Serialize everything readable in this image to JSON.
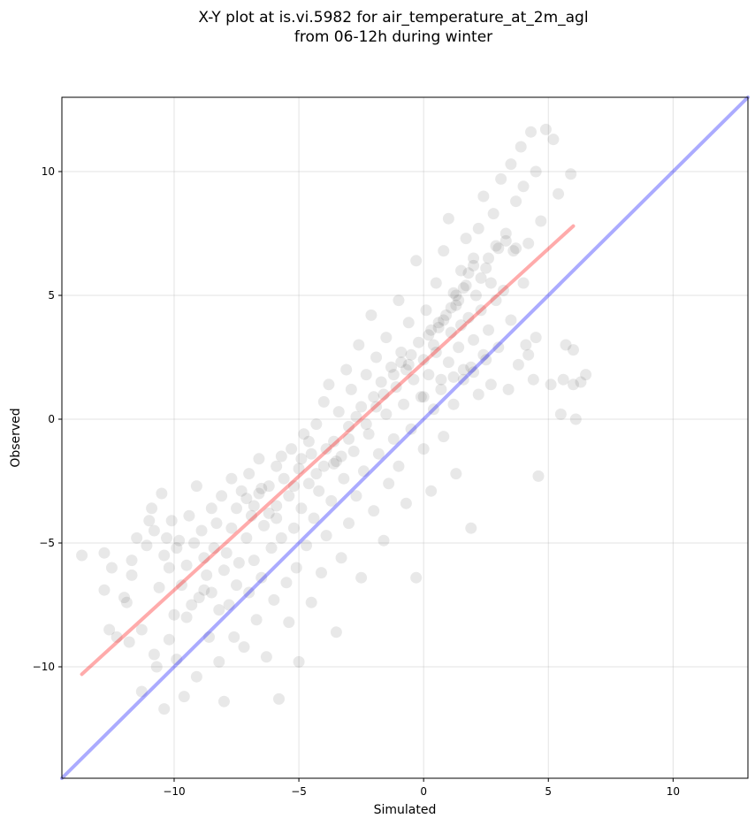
{
  "chart_data": {
    "type": "scatter",
    "title": "X-Y plot at is.vi.5982 for air_temperature_at_2m_agl",
    "subtitle": "from 06-12h during winter",
    "xlabel": "Simulated",
    "ylabel": "Observed",
    "xlim": [
      -14.5,
      13
    ],
    "ylim": [
      -14.5,
      13
    ],
    "x_ticks": [
      -10,
      -5,
      0,
      5,
      10
    ],
    "y_ticks": [
      -10,
      -5,
      0,
      5,
      10
    ],
    "x_tick_labels": [
      "−10",
      "−5",
      "0",
      "5",
      "10"
    ],
    "y_tick_labels": [
      "−10",
      "−5",
      "0",
      "5",
      "10"
    ],
    "grid": true,
    "series": [
      {
        "type": "scatter",
        "color": "#000000",
        "points": [
          [
            -13.7,
            -5.5
          ],
          [
            -12.8,
            -5.4
          ],
          [
            -12.8,
            -6.9
          ],
          [
            -12.6,
            -8.5
          ],
          [
            -12.3,
            -8.8
          ],
          [
            -12.0,
            -7.2
          ],
          [
            -11.9,
            -7.4
          ],
          [
            -11.7,
            -6.3
          ],
          [
            -11.7,
            -5.7
          ],
          [
            -11.5,
            -4.8
          ],
          [
            -11.3,
            -8.5
          ],
          [
            -11.3,
            -11.0
          ],
          [
            -11.1,
            -5.1
          ],
          [
            -11.0,
            -4.1
          ],
          [
            -10.9,
            -3.6
          ],
          [
            -10.8,
            -4.5
          ],
          [
            -10.8,
            -9.5
          ],
          [
            -10.7,
            -10.0
          ],
          [
            -10.6,
            -6.8
          ],
          [
            -10.5,
            -3.0
          ],
          [
            -10.4,
            -5.5
          ],
          [
            -10.4,
            -11.7
          ],
          [
            -10.3,
            -4.8
          ],
          [
            -10.2,
            -8.9
          ],
          [
            -10.1,
            -4.1
          ],
          [
            -10.0,
            -7.9
          ],
          [
            -9.9,
            -5.2
          ],
          [
            -9.9,
            -9.7
          ],
          [
            -9.8,
            -4.9
          ],
          [
            -9.7,
            -6.7
          ],
          [
            -9.6,
            -11.2
          ],
          [
            -9.5,
            -5.9
          ],
          [
            -9.4,
            -3.9
          ],
          [
            -9.3,
            -7.5
          ],
          [
            -9.2,
            -5.0
          ],
          [
            -9.1,
            -10.4
          ],
          [
            -9.1,
            -2.7
          ],
          [
            -9.0,
            -7.2
          ],
          [
            -8.9,
            -4.5
          ],
          [
            -8.8,
            -5.6
          ],
          [
            -8.7,
            -6.3
          ],
          [
            -8.6,
            -8.8
          ],
          [
            -8.5,
            -3.6
          ],
          [
            -8.5,
            -7.0
          ],
          [
            -8.4,
            -5.2
          ],
          [
            -8.3,
            -4.2
          ],
          [
            -8.2,
            -9.8
          ],
          [
            -8.1,
            -3.1
          ],
          [
            -8.0,
            -6.1
          ],
          [
            -8.0,
            -11.4
          ],
          [
            -7.9,
            -5.4
          ],
          [
            -7.8,
            -7.5
          ],
          [
            -7.7,
            -4.4
          ],
          [
            -7.6,
            -8.8
          ],
          [
            -7.5,
            -3.6
          ],
          [
            -7.5,
            -6.7
          ],
          [
            -7.4,
            -5.8
          ],
          [
            -7.3,
            -2.9
          ],
          [
            -7.2,
            -9.2
          ],
          [
            -7.1,
            -4.8
          ],
          [
            -7.0,
            -7.0
          ],
          [
            -7.0,
            -2.2
          ],
          [
            -6.9,
            -3.9
          ],
          [
            -6.8,
            -5.7
          ],
          [
            -6.7,
            -8.1
          ],
          [
            -6.6,
            -1.6
          ],
          [
            -6.6,
            -3.0
          ],
          [
            -6.5,
            -6.4
          ],
          [
            -6.4,
            -4.3
          ],
          [
            -6.3,
            -9.6
          ],
          [
            -6.2,
            -2.7
          ],
          [
            -6.1,
            -5.2
          ],
          [
            -6.0,
            -7.3
          ],
          [
            -5.9,
            -1.9
          ],
          [
            -5.9,
            -3.5
          ],
          [
            -5.8,
            -11.3
          ],
          [
            -5.7,
            -4.8
          ],
          [
            -5.6,
            -2.4
          ],
          [
            -5.5,
            -6.6
          ],
          [
            -5.4,
            -8.2
          ],
          [
            -5.4,
            -3.1
          ],
          [
            -5.3,
            -1.2
          ],
          [
            -5.2,
            -4.4
          ],
          [
            -5.1,
            -6.0
          ],
          [
            -5.0,
            -2.0
          ],
          [
            -5.0,
            -9.8
          ],
          [
            -4.9,
            -3.6
          ],
          [
            -4.8,
            -0.6
          ],
          [
            -4.7,
            -5.1
          ],
          [
            -4.6,
            -2.6
          ],
          [
            -4.5,
            -7.4
          ],
          [
            -4.5,
            -1.4
          ],
          [
            -4.4,
            -4.0
          ],
          [
            -4.3,
            -0.2
          ],
          [
            -4.2,
            -2.9
          ],
          [
            -4.1,
            -6.2
          ],
          [
            -4.0,
            0.7
          ],
          [
            -4.0,
            -1.9
          ],
          [
            -3.9,
            -4.7
          ],
          [
            -3.8,
            1.4
          ],
          [
            -3.7,
            -3.3
          ],
          [
            -3.6,
            -0.9
          ],
          [
            -3.5,
            -8.6
          ],
          [
            -3.5,
            -1.7
          ],
          [
            -3.4,
            0.3
          ],
          [
            -3.3,
            -5.6
          ],
          [
            -3.2,
            -2.4
          ],
          [
            -3.1,
            2.0
          ],
          [
            -3.0,
            -0.3
          ],
          [
            -3.0,
            -4.2
          ],
          [
            -2.9,
            1.2
          ],
          [
            -2.8,
            -1.3
          ],
          [
            -2.7,
            -3.1
          ],
          [
            -2.6,
            3.0
          ],
          [
            -2.5,
            0.5
          ],
          [
            -2.5,
            -6.4
          ],
          [
            -2.4,
            -2.1
          ],
          [
            -2.3,
            1.8
          ],
          [
            -2.2,
            -0.6
          ],
          [
            -2.1,
            4.2
          ],
          [
            -2.0,
            -3.7
          ],
          [
            -2.0,
            0.9
          ],
          [
            -1.9,
            2.5
          ],
          [
            -1.8,
            -1.4
          ],
          [
            -1.7,
            1.5
          ],
          [
            -1.6,
            -4.9
          ],
          [
            -1.5,
            3.3
          ],
          [
            -1.5,
            0.2
          ],
          [
            -1.4,
            -2.6
          ],
          [
            -1.3,
            2.1
          ],
          [
            -1.2,
            -0.8
          ],
          [
            -1.1,
            1.3
          ],
          [
            -1.0,
            4.8
          ],
          [
            -1.0,
            -1.9
          ],
          [
            -0.9,
            2.7
          ],
          [
            -0.8,
            0.6
          ],
          [
            -0.7,
            -3.4
          ],
          [
            -0.6,
            2.2
          ],
          [
            -0.6,
            3.9
          ],
          [
            -0.5,
            -0.4
          ],
          [
            -0.4,
            1.6
          ],
          [
            -0.3,
            6.4
          ],
          [
            -0.3,
            -6.4
          ],
          [
            -0.2,
            3.1
          ],
          [
            -0.1,
            0.9
          ],
          [
            0.0,
            2.4
          ],
          [
            0.0,
            -1.2
          ],
          [
            0.1,
            4.4
          ],
          [
            0.2,
            1.8
          ],
          [
            0.3,
            3.6
          ],
          [
            0.3,
            -2.9
          ],
          [
            0.4,
            0.4
          ],
          [
            0.5,
            5.5
          ],
          [
            0.5,
            2.7
          ],
          [
            0.6,
            3.9
          ],
          [
            0.7,
            1.2
          ],
          [
            0.8,
            6.8
          ],
          [
            0.8,
            -0.7
          ],
          [
            0.9,
            4.2
          ],
          [
            1.0,
            2.3
          ],
          [
            1.0,
            8.1
          ],
          [
            1.1,
            3.5
          ],
          [
            1.2,
            0.6
          ],
          [
            1.2,
            5.1
          ],
          [
            1.3,
            4.6
          ],
          [
            1.3,
            -2.2
          ],
          [
            1.4,
            2.9
          ],
          [
            1.5,
            6.0
          ],
          [
            1.5,
            3.8
          ],
          [
            1.6,
            1.6
          ],
          [
            1.7,
            5.4
          ],
          [
            1.7,
            7.3
          ],
          [
            1.8,
            4.1
          ],
          [
            1.9,
            2.1
          ],
          [
            1.9,
            -4.4
          ],
          [
            2.0,
            6.5
          ],
          [
            2.0,
            3.2
          ],
          [
            2.1,
            5.0
          ],
          [
            2.2,
            1.0
          ],
          [
            2.2,
            7.7
          ],
          [
            2.3,
            4.4
          ],
          [
            2.4,
            2.6
          ],
          [
            2.4,
            9.0
          ],
          [
            2.5,
            6.1
          ],
          [
            2.6,
            3.6
          ],
          [
            2.7,
            5.5
          ],
          [
            2.7,
            1.4
          ],
          [
            2.8,
            8.3
          ],
          [
            2.9,
            4.8
          ],
          [
            3.0,
            6.9
          ],
          [
            3.0,
            2.9
          ],
          [
            3.1,
            9.7
          ],
          [
            3.2,
            5.2
          ],
          [
            3.3,
            7.5
          ],
          [
            3.4,
            1.2
          ],
          [
            3.5,
            10.3
          ],
          [
            3.5,
            4.0
          ],
          [
            3.6,
            6.8
          ],
          [
            3.7,
            8.8
          ],
          [
            3.8,
            2.2
          ],
          [
            3.9,
            11.0
          ],
          [
            4.0,
            5.5
          ],
          [
            4.0,
            9.4
          ],
          [
            4.1,
            3.0
          ],
          [
            4.2,
            7.1
          ],
          [
            4.3,
            11.6
          ],
          [
            4.4,
            1.6
          ],
          [
            4.5,
            10.0
          ],
          [
            4.6,
            -2.3
          ],
          [
            4.7,
            8.0
          ],
          [
            4.9,
            11.7
          ],
          [
            5.1,
            1.4
          ],
          [
            5.2,
            11.3
          ],
          [
            5.4,
            9.1
          ],
          [
            5.6,
            1.6
          ],
          [
            5.7,
            3.0
          ],
          [
            5.9,
            9.9
          ],
          [
            6.0,
            2.8
          ],
          [
            6.1,
            0.0
          ],
          [
            6.3,
            1.5
          ],
          [
            6.5,
            1.8
          ],
          [
            6.0,
            1.4
          ],
          [
            5.5,
            0.2
          ],
          [
            4.5,
            3.3
          ],
          [
            4.2,
            2.6
          ],
          [
            -12.5,
            -6.0
          ],
          [
            -11.8,
            -9.0
          ],
          [
            -10.2,
            -6.0
          ],
          [
            -9.5,
            -8.0
          ],
          [
            -8.8,
            -6.9
          ],
          [
            -8.2,
            -7.7
          ],
          [
            -7.7,
            -2.4
          ],
          [
            -7.1,
            -3.2
          ],
          [
            -6.8,
            -3.5
          ],
          [
            -6.5,
            -2.8
          ],
          [
            -6.2,
            -3.8
          ],
          [
            -5.9,
            -4.0
          ],
          [
            -5.7,
            -1.5
          ],
          [
            -5.2,
            -2.7
          ],
          [
            -4.9,
            -1.6
          ],
          [
            -4.6,
            -0.9
          ],
          [
            -4.3,
            -2.2
          ],
          [
            -3.9,
            -1.2
          ],
          [
            -3.6,
            -1.8
          ],
          [
            -3.3,
            -1.5
          ],
          [
            -3.0,
            -0.8
          ],
          [
            -2.7,
            0.1
          ],
          [
            -2.3,
            -0.2
          ],
          [
            -1.9,
            0.5
          ],
          [
            -1.6,
            1.0
          ],
          [
            -1.2,
            1.8
          ],
          [
            -0.9,
            2.3
          ],
          [
            -0.7,
            2.0
          ],
          [
            -0.5,
            2.6
          ],
          [
            0.2,
            3.4
          ],
          [
            0.4,
            3.0
          ],
          [
            0.6,
            3.7
          ],
          [
            0.8,
            4.0
          ],
          [
            1.1,
            4.5
          ],
          [
            1.3,
            5.0
          ],
          [
            1.4,
            4.8
          ],
          [
            1.6,
            5.3
          ],
          [
            1.8,
            5.9
          ],
          [
            2.0,
            6.2
          ],
          [
            2.3,
            5.7
          ],
          [
            2.6,
            6.5
          ],
          [
            2.9,
            7.0
          ],
          [
            3.3,
            7.2
          ],
          [
            3.7,
            6.9
          ],
          [
            1.2,
            1.7
          ],
          [
            1.6,
            2.0
          ],
          [
            2.0,
            1.9
          ],
          [
            2.5,
            2.4
          ],
          [
            0.7,
            1.6
          ],
          [
            0.0,
            0.9
          ]
        ]
      },
      {
        "type": "line",
        "color": "#ff0000",
        "points": [
          [
            -13.7,
            -10.3
          ],
          [
            6.0,
            7.8
          ]
        ]
      },
      {
        "type": "line",
        "color": "#0000ff",
        "points": [
          [
            -14.5,
            -14.5
          ],
          [
            13,
            13
          ]
        ]
      }
    ]
  }
}
